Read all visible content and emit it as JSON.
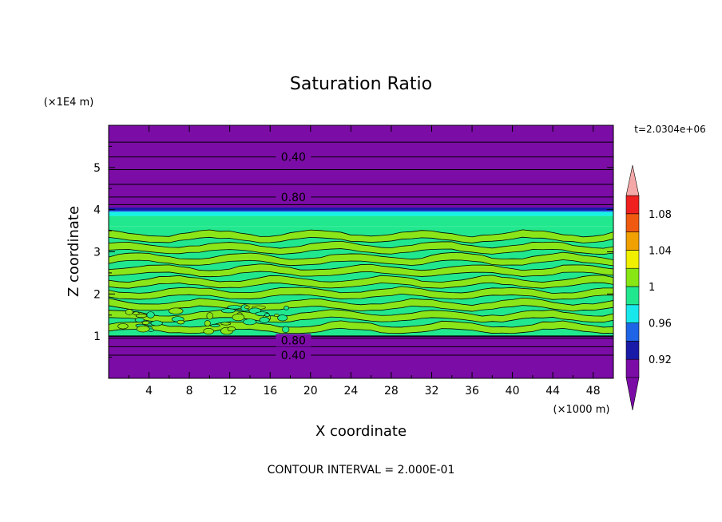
{
  "chart_data": {
    "type": "heatmap",
    "title": "Saturation Ratio",
    "xlabel": "X coordinate",
    "ylabel": "Z coordinate",
    "x_unit": "(×1000 m)",
    "y_unit": "(×1E4 m)",
    "time_label": "t=2.0304e+06",
    "footer": "CONTOUR INTERVAL = 2.000E-01",
    "xlim": [
      0,
      50
    ],
    "ylim": [
      0,
      6
    ],
    "x_ticks": [
      4,
      8,
      12,
      16,
      20,
      24,
      28,
      32,
      36,
      40,
      44,
      48
    ],
    "y_ticks": [
      1,
      2,
      3,
      4,
      5
    ],
    "contour_labels": [
      {
        "text": "0.40",
        "x": 17.5,
        "y": 5.25
      },
      {
        "text": "0.80",
        "x": 17.5,
        "y": 4.3
      },
      {
        "text": "0.80",
        "x": 17.5,
        "y": 0.9
      },
      {
        "text": "0.40",
        "x": 17.5,
        "y": 0.55
      }
    ],
    "contour_levels_upper": [
      5.6,
      5.25,
      4.95,
      4.6,
      4.3,
      4.12
    ],
    "contour_levels_lower": [
      0.95,
      0.75,
      0.55
    ],
    "layers": [
      {
        "z0": 0.0,
        "z1": 1.0,
        "color": "#7b0ca6"
      },
      {
        "z0": 1.0,
        "z1": 3.6,
        "color": "#21e88e"
      },
      {
        "z0": 3.6,
        "z1": 3.85,
        "color": "#21e88e"
      },
      {
        "z0": 3.85,
        "z1": 3.95,
        "color": "#16f2e4"
      },
      {
        "z0": 3.95,
        "z1": 4.05,
        "color": "#1e5fe6"
      },
      {
        "z0": 4.05,
        "z1": 6.0,
        "color": "#7b0ca6"
      }
    ],
    "colorbar": {
      "tick_labels": [
        "0.92",
        "0.96",
        "1",
        "1.04",
        "1.08"
      ],
      "colors": [
        "#7b0ca6",
        "#1a1aa8",
        "#1e64e6",
        "#18e8ec",
        "#21e88e",
        "#88e614",
        "#f0f000",
        "#f0a000",
        "#f05a10",
        "#f02020"
      ],
      "over_color": "#f5a8a8",
      "under_color": "#7b0ca6"
    }
  }
}
